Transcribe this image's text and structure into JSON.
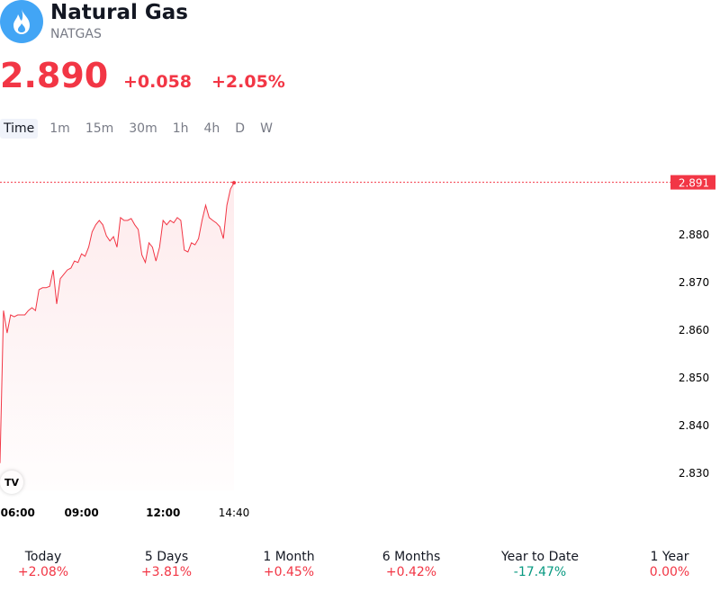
{
  "header": {
    "title": "Natural Gas",
    "symbol": "NATGAS",
    "price": "2.890",
    "change": "+0.058",
    "change_percent": "+2.05%"
  },
  "timeframes": {
    "items": [
      "Time",
      "1m",
      "15m",
      "30m",
      "1h",
      "4h",
      "D",
      "W"
    ],
    "selected": "Time"
  },
  "chart_data": {
    "type": "line",
    "color": "#f23645",
    "categories": [
      null,
      null,
      null,
      null,
      null,
      "06:00",
      null,
      null,
      null,
      null,
      null,
      null,
      null,
      null,
      null,
      null,
      null,
      null,
      null,
      null,
      null,
      null,
      null,
      "09:00",
      null,
      null,
      null,
      null,
      null,
      null,
      null,
      null,
      null,
      null,
      null,
      null,
      null,
      null,
      null,
      null,
      null,
      null,
      null,
      null,
      null,
      null,
      "12:00",
      null,
      null,
      null,
      null,
      null,
      null,
      null,
      null,
      null,
      null,
      null,
      null,
      null,
      null,
      null,
      null,
      null,
      null,
      null,
      "14:40"
    ],
    "values": [
      2.8321,
      2.8641,
      2.8594,
      2.8632,
      2.8628,
      2.8632,
      2.8632,
      2.8632,
      2.8641,
      2.8647,
      2.8641,
      2.8685,
      2.8689,
      2.8689,
      2.8692,
      2.8726,
      2.8655,
      2.8708,
      2.8717,
      2.8726,
      2.873,
      2.8745,
      2.8742,
      2.876,
      2.8755,
      2.8774,
      2.8806,
      2.8821,
      2.883,
      2.8821,
      2.8798,
      2.8787,
      2.8796,
      2.8774,
      2.8836,
      2.883,
      2.883,
      2.8834,
      2.8821,
      2.8811,
      2.8758,
      2.8742,
      2.8783,
      2.8774,
      2.8745,
      2.8774,
      2.883,
      2.8821,
      2.883,
      2.8825,
      2.8836,
      2.883,
      2.8768,
      2.8764,
      2.8783,
      2.8779,
      2.8792,
      2.883,
      2.8862,
      2.8836,
      2.883,
      2.8825,
      2.8817,
      2.8792,
      2.8862,
      2.8896,
      2.8909
    ],
    "ylim": [
      2.8264,
      2.8981
    ],
    "yticks": [
      {
        "value": 2.83,
        "label": "2.830"
      },
      {
        "value": 2.84,
        "label": "2.840"
      },
      {
        "value": 2.85,
        "label": "2.850"
      },
      {
        "value": 2.86,
        "label": "2.860"
      },
      {
        "value": 2.87,
        "label": "2.870"
      },
      {
        "value": 2.88,
        "label": "2.880"
      }
    ],
    "price_line": 2.891
  },
  "performance": [
    {
      "label": "Today",
      "value": "+2.08%",
      "color": "#f23645"
    },
    {
      "label": "5 Days",
      "value": "+3.81%",
      "color": "#f23645"
    },
    {
      "label": "1 Month",
      "value": "+0.45%",
      "color": "#f23645"
    },
    {
      "label": "6 Months",
      "value": "+0.42%",
      "color": "#f23645"
    },
    {
      "label": "Year to Date",
      "value": "-17.47%",
      "color": "#089981"
    },
    {
      "label": "1 Year",
      "value": "0.00%",
      "color": "#f23645"
    }
  ]
}
